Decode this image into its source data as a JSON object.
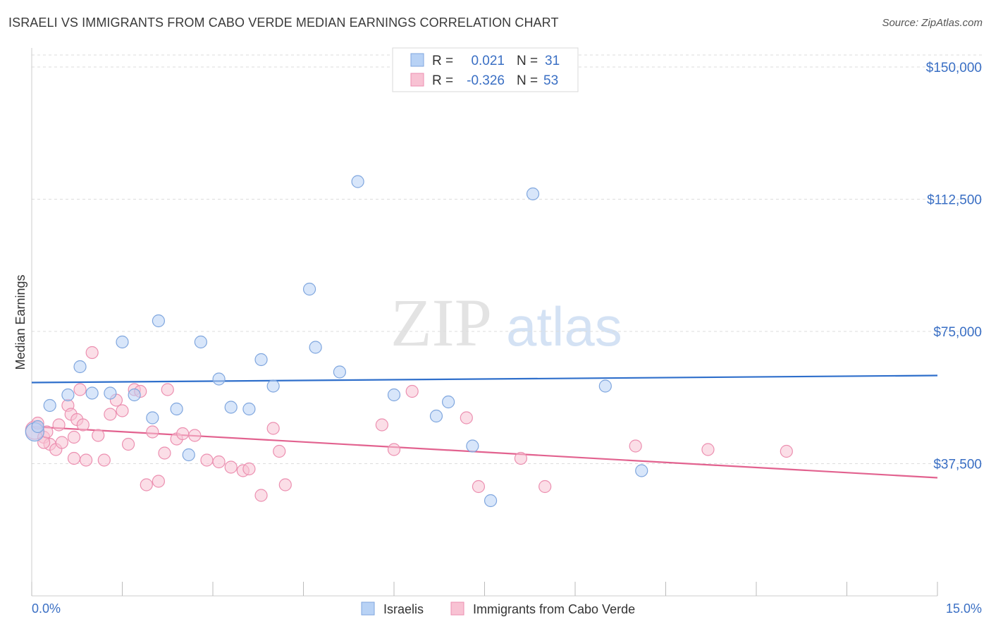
{
  "title": "ISRAELI VS IMMIGRANTS FROM CABO VERDE MEDIAN EARNINGS CORRELATION CHART",
  "source": "Source: ZipAtlas.com",
  "watermark": {
    "zip": "ZIP",
    "atlas": "atlas"
  },
  "colors": {
    "blue_fill": "#b8d2f5",
    "blue_stroke": "#7fa6de",
    "blue_line": "#2f6fcb",
    "pink_fill": "#f8c2d3",
    "pink_stroke": "#ec8fb0",
    "pink_line": "#e2628f",
    "axis_text": "#3a6fc4",
    "grid": "#dddddd"
  },
  "legend_top": [
    {
      "r_label": "R =",
      "r_value": "0.021",
      "n_label": "N =",
      "n_value": "31",
      "series": "blue"
    },
    {
      "r_label": "R =",
      "r_value": "-0.326",
      "n_label": "N =",
      "n_value": "53",
      "series": "pink"
    }
  ],
  "chart_data": {
    "type": "scatter",
    "title": "ISRAELI VS IMMIGRANTS FROM CABO VERDE MEDIAN EARNINGS CORRELATION CHART",
    "xlabel": "",
    "ylabel": "Median Earnings",
    "xlim": [
      0,
      15
    ],
    "ylim": [
      0,
      155000
    ],
    "x_tick_labels": [
      "0.0%",
      "15.0%"
    ],
    "y_ticks": [
      37500,
      75000,
      112500,
      150000
    ],
    "y_tick_labels": [
      "$37,500",
      "$75,000",
      "$112,500",
      "$150,000"
    ],
    "grid": true,
    "legend_position": "top-center",
    "series": [
      {
        "name": "Israelis",
        "color": "blue",
        "trend": [
          [
            0,
            60500
          ],
          [
            15,
            62500
          ]
        ],
        "points": [
          [
            0.05,
            46500
          ],
          [
            0.1,
            48000
          ],
          [
            0.3,
            54000
          ],
          [
            0.6,
            57000
          ],
          [
            0.8,
            65000
          ],
          [
            1.0,
            57500
          ],
          [
            1.3,
            57500
          ],
          [
            1.5,
            72000
          ],
          [
            1.7,
            57000
          ],
          [
            2.0,
            50500
          ],
          [
            2.1,
            78000
          ],
          [
            2.4,
            53000
          ],
          [
            2.6,
            40000
          ],
          [
            2.8,
            72000
          ],
          [
            3.1,
            61500
          ],
          [
            3.3,
            53500
          ],
          [
            3.6,
            53000
          ],
          [
            3.8,
            67000
          ],
          [
            4.0,
            59500
          ],
          [
            4.6,
            87000
          ],
          [
            4.7,
            70500
          ],
          [
            5.1,
            63500
          ],
          [
            5.4,
            117500
          ],
          [
            6.0,
            57000
          ],
          [
            6.7,
            51000
          ],
          [
            6.9,
            55000
          ],
          [
            7.3,
            42500
          ],
          [
            7.6,
            27000
          ],
          [
            8.3,
            114000
          ],
          [
            9.5,
            59500
          ],
          [
            10.1,
            35500
          ]
        ]
      },
      {
        "name": "Immigrants from Cabo Verde",
        "color": "pink",
        "trend": [
          [
            0,
            48000
          ],
          [
            15,
            33500
          ]
        ],
        "points": [
          [
            0.05,
            47000
          ],
          [
            0.1,
            49000
          ],
          [
            0.2,
            45000
          ],
          [
            0.3,
            43000
          ],
          [
            0.4,
            41500
          ],
          [
            0.45,
            48500
          ],
          [
            0.5,
            43500
          ],
          [
            0.6,
            54000
          ],
          [
            0.65,
            51500
          ],
          [
            0.7,
            45000
          ],
          [
            0.7,
            39000
          ],
          [
            0.75,
            50000
          ],
          [
            0.8,
            58500
          ],
          [
            0.85,
            48500
          ],
          [
            0.9,
            38500
          ],
          [
            1.0,
            69000
          ],
          [
            1.1,
            45500
          ],
          [
            1.2,
            38500
          ],
          [
            1.3,
            51500
          ],
          [
            1.4,
            55500
          ],
          [
            1.5,
            52500
          ],
          [
            1.6,
            43000
          ],
          [
            1.7,
            58500
          ],
          [
            1.8,
            58000
          ],
          [
            1.9,
            31500
          ],
          [
            2.0,
            46500
          ],
          [
            2.1,
            32500
          ],
          [
            2.2,
            40500
          ],
          [
            2.25,
            58500
          ],
          [
            2.4,
            44500
          ],
          [
            2.5,
            46000
          ],
          [
            2.7,
            45500
          ],
          [
            2.9,
            38500
          ],
          [
            3.1,
            38000
          ],
          [
            3.3,
            36500
          ],
          [
            3.5,
            35500
          ],
          [
            3.6,
            36000
          ],
          [
            3.8,
            28500
          ],
          [
            4.0,
            47500
          ],
          [
            4.1,
            41000
          ],
          [
            4.2,
            31500
          ],
          [
            5.8,
            48500
          ],
          [
            6.0,
            41500
          ],
          [
            6.3,
            58000
          ],
          [
            7.2,
            50500
          ],
          [
            7.4,
            31000
          ],
          [
            8.1,
            39000
          ],
          [
            8.5,
            31000
          ],
          [
            10.0,
            42500
          ],
          [
            11.2,
            41500
          ],
          [
            12.5,
            41000
          ],
          [
            0.2,
            43500
          ],
          [
            0.25,
            46500
          ]
        ]
      }
    ]
  },
  "bottom_legend": [
    {
      "label": "Israelis",
      "series": "blue"
    },
    {
      "label": "Immigrants from Cabo Verde",
      "series": "pink"
    }
  ]
}
